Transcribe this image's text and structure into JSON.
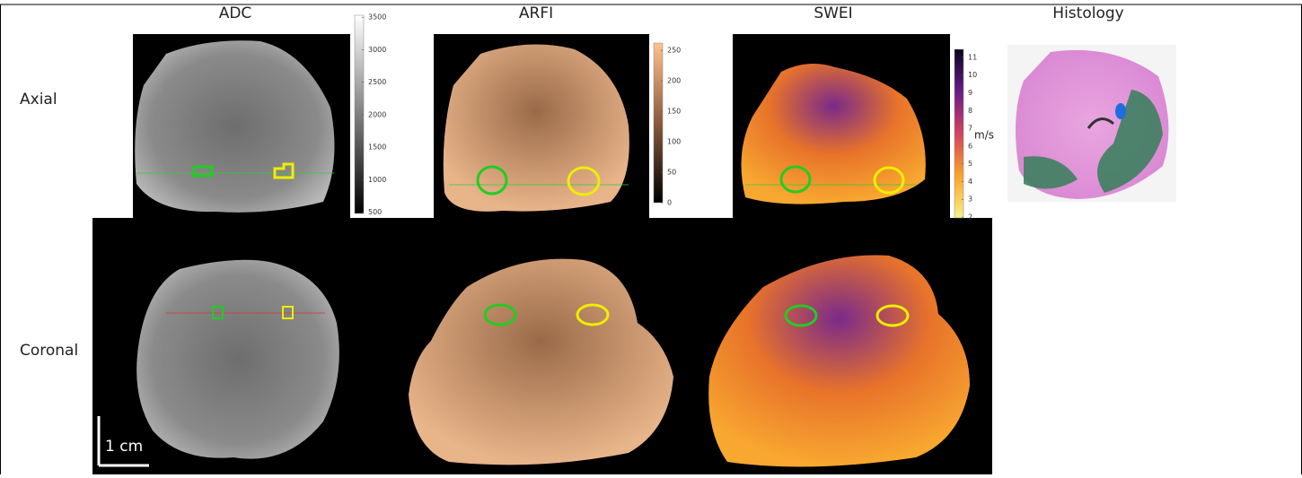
{
  "columns": [
    "ADC",
    "ARFI",
    "SWEI",
    "Histology"
  ],
  "rows": [
    "Axial",
    "Coronal"
  ],
  "colorbars": [
    {
      "range": [
        480,
        3530
      ],
      "ticks": [
        500,
        1000,
        1500,
        2000,
        2500,
        3000,
        3500
      ]
    },
    {
      "range": [
        0,
        262
      ],
      "ticks": [
        0,
        50,
        100,
        150,
        200,
        250
      ]
    },
    {
      "range": [
        1.95,
        11.45
      ],
      "ticks": [
        2,
        3,
        4,
        5,
        6,
        7,
        8,
        9,
        10,
        11
      ],
      "unit": "m/s"
    }
  ],
  "scale_bar": "1 cm"
}
